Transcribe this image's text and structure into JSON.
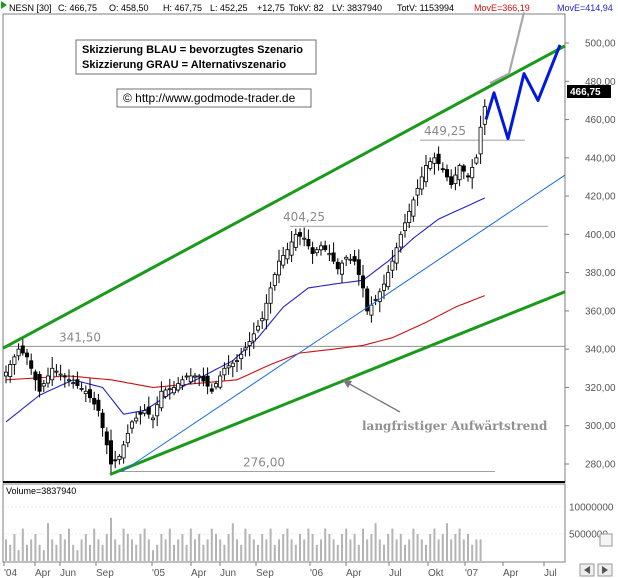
{
  "header": {
    "symbol": "NESN [30]",
    "close": "C: 466,75",
    "open": "O: 458,50",
    "high": "H: 467,75",
    "low": "L: 452,25",
    "change": "+12,75",
    "tokv": "TokV: 82",
    "lv": "LV: 3837940",
    "totv": "TotV: 1153994",
    "move_red": "MovE=366,19",
    "move_blue": "MovE=414,94"
  },
  "legend": {
    "line1": "Skizzierung BLAU = bevorzugtes Szenario",
    "line2": "Skizzierung GRAU = Alternativszenario"
  },
  "copyright": "© http://www.godmode-trader.de",
  "price_tag": "466,75",
  "volume_label": "Volume=3837940",
  "colors": {
    "channel": "#1a9a1a",
    "trend": "#1d6bd8",
    "ma_blue": "#2222cc",
    "ma_red": "#cc1111",
    "scenario_blue": "#0018e0",
    "scenario_grey": "#a8a8a8",
    "candle": "#000000",
    "level_line": "#808080",
    "volume_bar": "#b4b4b4"
  },
  "chart_data": {
    "type": "candlestick",
    "y_ticks": [
      "500,00",
      "480,00",
      "460,00",
      "440,00",
      "420,00",
      "400,00",
      "380,00",
      "360,00",
      "340,00",
      "320,00",
      "300,00",
      "280,00"
    ],
    "y_range": [
      270,
      506
    ],
    "x_ticks": [
      "'04",
      "Apr",
      "Jun",
      "Sep",
      "'05",
      "Apr",
      "Jun",
      "Sep",
      "'06",
      "Apr",
      "Jul",
      "Okt",
      "'07",
      "Apr",
      "Jul"
    ],
    "levels": [
      {
        "label": "449,25",
        "value": 449.25
      },
      {
        "label": "404,25",
        "value": 404.25
      },
      {
        "label": "341,50",
        "value": 341.5
      },
      {
        "label": "276,00",
        "value": 276.0
      }
    ],
    "annotation": "langfristiger Aufwärtstrend",
    "price_anchors": [
      [
        0,
        328
      ],
      [
        3,
        340
      ],
      [
        5,
        336
      ],
      [
        8,
        318
      ],
      [
        11,
        330
      ],
      [
        15,
        324
      ],
      [
        19,
        318
      ],
      [
        22,
        308
      ],
      [
        24,
        290
      ],
      [
        25,
        280
      ],
      [
        27,
        284
      ],
      [
        30,
        302
      ],
      [
        33,
        308
      ],
      [
        35,
        304
      ],
      [
        37,
        318
      ],
      [
        40,
        320
      ],
      [
        43,
        326
      ],
      [
        46,
        326
      ],
      [
        49,
        318
      ],
      [
        52,
        330
      ],
      [
        55,
        334
      ],
      [
        58,
        344
      ],
      [
        61,
        356
      ],
      [
        63,
        372
      ],
      [
        65,
        386
      ],
      [
        67,
        392
      ],
      [
        69,
        400
      ],
      [
        71,
        398
      ],
      [
        73,
        390
      ],
      [
        75,
        394
      ],
      [
        77,
        390
      ],
      [
        79,
        382
      ],
      [
        81,
        388
      ],
      [
        83,
        386
      ],
      [
        85,
        372
      ],
      [
        86,
        360
      ],
      [
        88,
        366
      ],
      [
        90,
        374
      ],
      [
        92,
        386
      ],
      [
        94,
        400
      ],
      [
        96,
        412
      ],
      [
        98,
        424
      ],
      [
        100,
        436
      ],
      [
        102,
        440
      ],
      [
        104,
        434
      ],
      [
        106,
        426
      ],
      [
        108,
        436
      ],
      [
        110,
        430
      ],
      [
        112,
        440
      ],
      [
        113,
        456
      ],
      [
        114,
        466.75
      ]
    ],
    "ma_blue_anchors": [
      [
        0,
        302
      ],
      [
        8,
        316
      ],
      [
        16,
        324
      ],
      [
        23,
        320
      ],
      [
        28,
        306
      ],
      [
        33,
        308
      ],
      [
        40,
        318
      ],
      [
        47,
        326
      ],
      [
        54,
        334
      ],
      [
        60,
        346
      ],
      [
        66,
        362
      ],
      [
        72,
        372
      ],
      [
        78,
        374
      ],
      [
        85,
        376
      ],
      [
        91,
        386
      ],
      [
        97,
        398
      ],
      [
        103,
        408
      ],
      [
        109,
        414
      ],
      [
        114,
        419
      ]
    ],
    "ma_red_anchors": [
      [
        0,
        324
      ],
      [
        15,
        326
      ],
      [
        25,
        324
      ],
      [
        35,
        320
      ],
      [
        45,
        322
      ],
      [
        55,
        324
      ],
      [
        63,
        332
      ],
      [
        70,
        338
      ],
      [
        78,
        340
      ],
      [
        85,
        342
      ],
      [
        92,
        346
      ],
      [
        100,
        354
      ],
      [
        107,
        362
      ],
      [
        114,
        368
      ]
    ],
    "volume": {
      "y_ticks": [
        "10000000",
        "5000000"
      ],
      "bars": [
        4,
        3,
        5,
        2,
        6,
        3,
        4,
        5,
        3,
        2,
        7,
        4,
        3,
        5,
        4,
        6,
        3,
        2,
        4,
        5,
        3,
        6,
        4,
        3,
        5,
        8,
        4,
        3,
        6,
        5,
        4,
        3,
        5,
        6,
        4,
        2,
        3,
        5,
        4,
        6,
        3,
        4,
        5,
        3,
        6,
        4,
        5,
        3,
        4,
        6,
        5,
        4,
        3,
        5,
        7,
        4,
        3,
        6,
        5,
        4,
        3,
        5,
        4,
        6,
        3,
        4,
        5,
        6,
        4,
        3,
        5,
        4,
        6,
        5,
        3,
        4,
        6,
        5,
        4,
        3,
        5,
        6,
        4,
        5,
        3,
        6,
        4,
        5,
        7,
        4,
        3,
        5,
        6,
        4,
        5,
        3,
        4,
        6,
        5,
        4,
        3,
        5,
        6,
        4,
        5,
        7,
        4,
        5,
        6,
        4,
        5,
        3,
        4,
        4
      ]
    }
  }
}
